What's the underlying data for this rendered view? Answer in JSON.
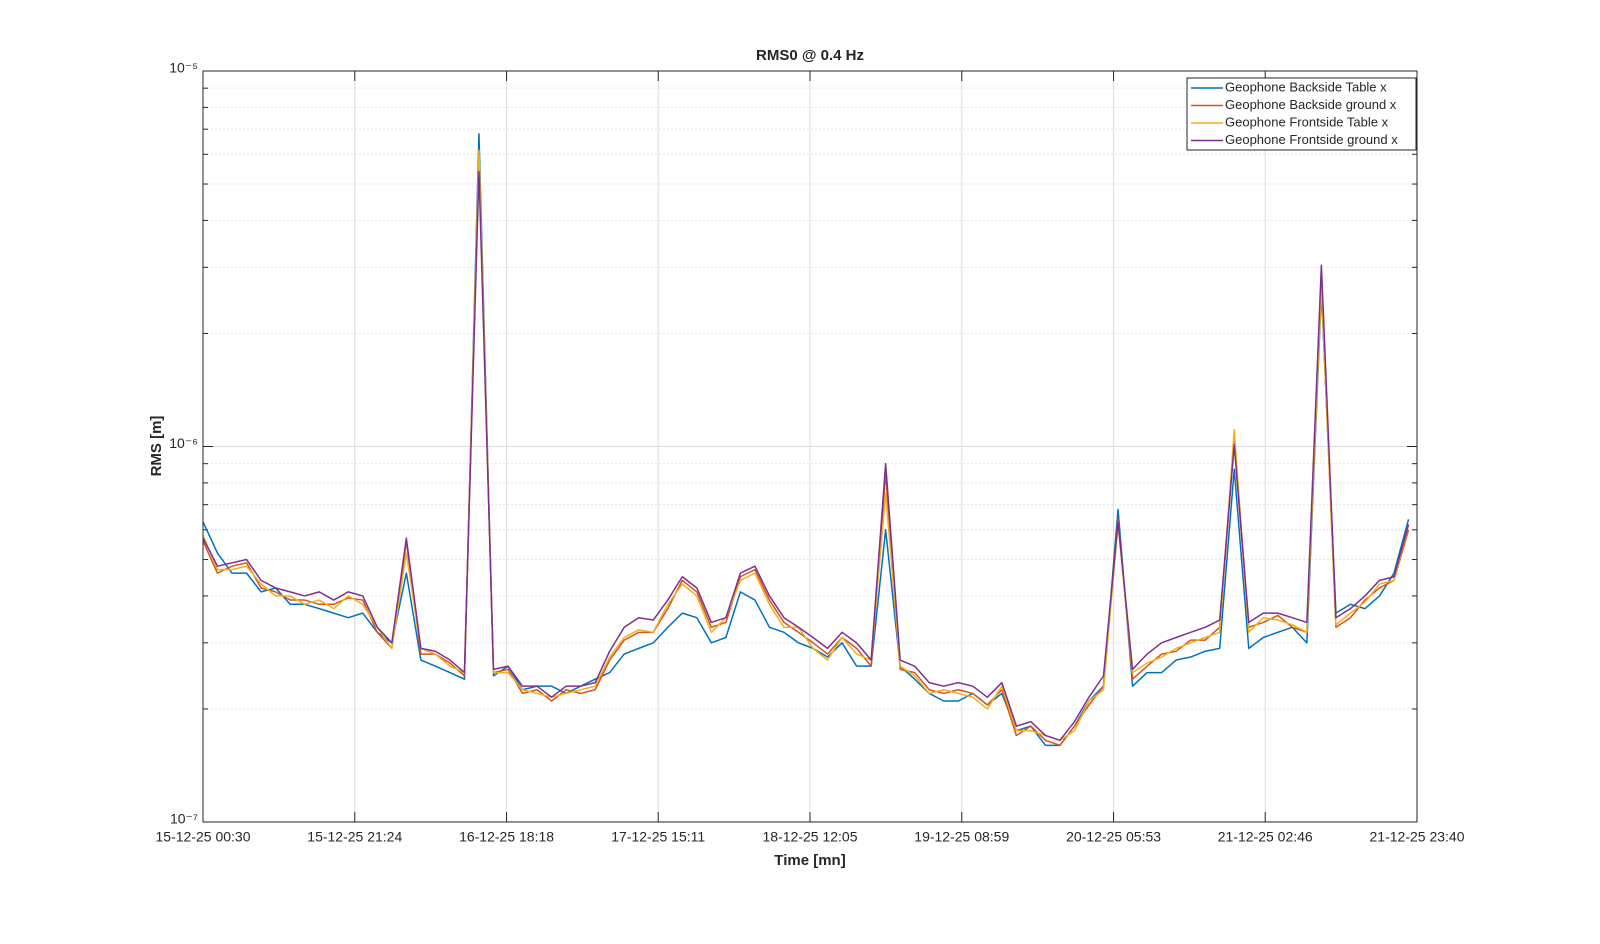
{
  "chart_data": {
    "type": "line",
    "title": "RMS0 @ 0.4 Hz",
    "xlabel": "Time [mn]",
    "ylabel": "RMS [m]",
    "yscale": "log",
    "grid": true,
    "minor_grid": true,
    "legend": "northeast",
    "xlim": [
      "15-12-25 00:30",
      "21-12-25 23:40"
    ],
    "xticks": [
      "15-12-25 00:30",
      "15-12-25 21:24",
      "16-12-25 18:18",
      "17-12-25 15:11",
      "18-12-25 12:05",
      "19-12-25 08:59",
      "20-12-25 05:53",
      "21-12-25 02:46",
      "21-12-25 23:40"
    ],
    "ylim": [
      1e-07,
      1e-05
    ],
    "yticks": [
      {
        "value": 1e-07,
        "label": "10⁻⁷"
      },
      {
        "value": 1e-06,
        "label": "10⁻⁶"
      },
      {
        "value": 1e-05,
        "label": "10⁻⁵"
      }
    ],
    "yminor": [
      2e-07,
      3e-07,
      4e-07,
      5e-07,
      6e-07,
      7e-07,
      8e-07,
      9e-07,
      2e-06,
      3e-06,
      4e-06,
      5e-06,
      6e-06,
      7e-06,
      8e-06,
      9e-06
    ],
    "x": [
      "15-12-25 00:30",
      "15-12-25 02:30",
      "15-12-25 04:30",
      "15-12-25 06:30",
      "15-12-25 08:30",
      "15-12-25 10:30",
      "15-12-25 12:30",
      "15-12-25 14:30",
      "15-12-25 16:30",
      "15-12-25 18:30",
      "15-12-25 20:30",
      "15-12-25 22:30",
      "16-12-25 00:30",
      "16-12-25 02:30",
      "16-12-25 04:30",
      "16-12-25 06:30",
      "16-12-25 08:30",
      "16-12-25 10:30",
      "16-12-25 12:30",
      "16-12-25 14:30",
      "16-12-25 16:30",
      "16-12-25 18:30",
      "16-12-25 20:30",
      "16-12-25 22:30",
      "17-12-25 00:30",
      "17-12-25 02:30",
      "17-12-25 04:30",
      "17-12-25 06:30",
      "17-12-25 08:30",
      "17-12-25 10:30",
      "17-12-25 12:30",
      "17-12-25 14:30",
      "17-12-25 16:30",
      "17-12-25 18:30",
      "17-12-25 20:30",
      "17-12-25 22:30",
      "18-12-25 00:30",
      "18-12-25 02:30",
      "18-12-25 04:30",
      "18-12-25 06:30",
      "18-12-25 08:30",
      "18-12-25 10:30",
      "18-12-25 12:30",
      "18-12-25 14:30",
      "18-12-25 16:30",
      "18-12-25 18:30",
      "18-12-25 20:30",
      "18-12-25 22:30",
      "19-12-25 00:30",
      "19-12-25 02:30",
      "19-12-25 04:30",
      "19-12-25 06:30",
      "19-12-25 08:30",
      "19-12-25 10:30",
      "19-12-25 12:30",
      "19-12-25 14:30",
      "19-12-25 16:30",
      "19-12-25 18:30",
      "19-12-25 20:30",
      "19-12-25 22:30",
      "20-12-25 00:30",
      "20-12-25 02:30",
      "20-12-25 04:30",
      "20-12-25 06:30",
      "20-12-25 08:30",
      "20-12-25 10:30",
      "20-12-25 12:30",
      "20-12-25 14:30",
      "20-12-25 16:30",
      "20-12-25 18:30",
      "20-12-25 20:30",
      "20-12-25 22:30",
      "21-12-25 00:30",
      "21-12-25 02:30",
      "21-12-25 04:30",
      "21-12-25 06:30",
      "21-12-25 08:30",
      "21-12-25 10:30",
      "21-12-25 12:30",
      "21-12-25 14:30",
      "21-12-25 16:30",
      "21-12-25 18:30",
      "21-12-25 20:30",
      "21-12-25 22:30"
    ],
    "series": [
      {
        "name": "Geophone Backside Table x",
        "color": "#0072BD",
        "values": [
          6.3e-07,
          5.2e-07,
          4.6e-07,
          4.6e-07,
          4.1e-07,
          4.2e-07,
          3.8e-07,
          3.8e-07,
          3.7e-07,
          3.6e-07,
          3.5e-07,
          3.6e-07,
          3.2e-07,
          3e-07,
          4.6e-07,
          2.7e-07,
          2.6e-07,
          2.5e-07,
          2.4e-07,
          6.8e-06,
          2.45e-07,
          2.6e-07,
          2.25e-07,
          2.3e-07,
          2.3e-07,
          2.2e-07,
          2.3e-07,
          2.4e-07,
          2.5e-07,
          2.8e-07,
          2.9e-07,
          3e-07,
          3.3e-07,
          3.6e-07,
          3.5e-07,
          3e-07,
          3.1e-07,
          4.1e-07,
          3.9e-07,
          3.3e-07,
          3.2e-07,
          3e-07,
          2.9e-07,
          2.75e-07,
          3e-07,
          2.6e-07,
          2.6e-07,
          6e-07,
          2.6e-07,
          2.4e-07,
          2.2e-07,
          2.1e-07,
          2.1e-07,
          2.2e-07,
          2.05e-07,
          2.2e-07,
          1.75e-07,
          1.8e-07,
          1.6e-07,
          1.6e-07,
          1.8e-07,
          2.1e-07,
          2.3e-07,
          6.8e-07,
          2.3e-07,
          2.5e-07,
          2.5e-07,
          2.7e-07,
          2.75e-07,
          2.85e-07,
          2.9e-07,
          8.7e-07,
          2.9e-07,
          3.1e-07,
          3.2e-07,
          3.3e-07,
          3e-07,
          2.6e-06,
          3.6e-07,
          3.8e-07,
          3.7e-07,
          4e-07,
          4.6e-07,
          6.4e-07
        ]
      },
      {
        "name": "Geophone Backside ground x",
        "color": "#D95319",
        "values": [
          5.6e-07,
          4.6e-07,
          4.8e-07,
          4.9e-07,
          4.2e-07,
          4.1e-07,
          3.9e-07,
          3.9e-07,
          3.8e-07,
          3.8e-07,
          3.95e-07,
          3.9e-07,
          3.2e-07,
          2.9e-07,
          5.6e-07,
          2.8e-07,
          2.8e-07,
          2.65e-07,
          2.45e-07,
          6e-06,
          2.5e-07,
          2.55e-07,
          2.2e-07,
          2.25e-07,
          2.1e-07,
          2.25e-07,
          2.2e-07,
          2.25e-07,
          2.7e-07,
          3.05e-07,
          3.2e-07,
          3.2e-07,
          3.7e-07,
          4.4e-07,
          4.1e-07,
          3.3e-07,
          3.4e-07,
          4.5e-07,
          4.7e-07,
          3.9e-07,
          3.4e-07,
          3.2e-07,
          3e-07,
          2.8e-07,
          3.1e-07,
          2.9e-07,
          2.6e-07,
          8.5e-07,
          2.55e-07,
          2.5e-07,
          2.25e-07,
          2.2e-07,
          2.25e-07,
          2.2e-07,
          2.05e-07,
          2.25e-07,
          1.7e-07,
          1.8e-07,
          1.65e-07,
          1.6e-07,
          1.8e-07,
          2.05e-07,
          2.3e-07,
          6.4e-07,
          2.4e-07,
          2.6e-07,
          2.8e-07,
          2.85e-07,
          3.05e-07,
          3.05e-07,
          3.3e-07,
          1.03e-06,
          3.3e-07,
          3.4e-07,
          3.55e-07,
          3.3e-07,
          3.2e-07,
          2.7e-06,
          3.3e-07,
          3.5e-07,
          3.9e-07,
          4.2e-07,
          4.4e-07,
          6e-07
        ]
      },
      {
        "name": "Geophone Frontside Table x",
        "color": "#EDB120",
        "values": [
          5.8e-07,
          4.7e-07,
          4.7e-07,
          4.8e-07,
          4.3e-07,
          4e-07,
          4e-07,
          3.8e-07,
          3.9e-07,
          3.7e-07,
          4e-07,
          3.8e-07,
          3.3e-07,
          2.9e-07,
          5.2e-07,
          2.9e-07,
          2.8e-07,
          2.6e-07,
          2.5e-07,
          6.15e-06,
          2.5e-07,
          2.5e-07,
          2.25e-07,
          2.2e-07,
          2.15e-07,
          2.2e-07,
          2.25e-07,
          2.3e-07,
          2.75e-07,
          3.1e-07,
          3.25e-07,
          3.2e-07,
          3.8e-07,
          4.3e-07,
          4e-07,
          3.2e-07,
          3.5e-07,
          4.4e-07,
          4.6e-07,
          3.8e-07,
          3.3e-07,
          3.3e-07,
          2.9e-07,
          2.7e-07,
          3.1e-07,
          2.8e-07,
          2.7e-07,
          7.5e-07,
          2.6e-07,
          2.45e-07,
          2.2e-07,
          2.25e-07,
          2.2e-07,
          2.15e-07,
          2e-07,
          2.3e-07,
          1.75e-07,
          1.75e-07,
          1.7e-07,
          1.65e-07,
          1.75e-07,
          2.1e-07,
          2.25e-07,
          6.2e-07,
          2.5e-07,
          2.65e-07,
          2.75e-07,
          2.9e-07,
          3e-07,
          3.1e-07,
          3.2e-07,
          1.11e-06,
          3.2e-07,
          3.5e-07,
          3.45e-07,
          3.35e-07,
          3.2e-07,
          2.7e-06,
          3.35e-07,
          3.6e-07,
          3.85e-07,
          4.3e-07,
          4.4e-07,
          6.2e-07
        ]
      },
      {
        "name": "Geophone Frontside ground x",
        "color": "#7E2F8E",
        "values": [
          5.7e-07,
          4.8e-07,
          4.9e-07,
          5e-07,
          4.4e-07,
          4.2e-07,
          4.1e-07,
          4e-07,
          4.1e-07,
          3.9e-07,
          4.1e-07,
          4e-07,
          3.3e-07,
          3e-07,
          5.7e-07,
          2.9e-07,
          2.85e-07,
          2.7e-07,
          2.5e-07,
          5.4e-06,
          2.55e-07,
          2.6e-07,
          2.3e-07,
          2.3e-07,
          2.15e-07,
          2.3e-07,
          2.3e-07,
          2.35e-07,
          2.85e-07,
          3.3e-07,
          3.5e-07,
          3.45e-07,
          3.9e-07,
          4.5e-07,
          4.2e-07,
          3.4e-07,
          3.5e-07,
          4.6e-07,
          4.8e-07,
          4e-07,
          3.5e-07,
          3.3e-07,
          3.1e-07,
          2.9e-07,
          3.2e-07,
          3e-07,
          2.7e-07,
          9e-07,
          2.7e-07,
          2.6e-07,
          2.35e-07,
          2.3e-07,
          2.35e-07,
          2.3e-07,
          2.15e-07,
          2.35e-07,
          1.8e-07,
          1.85e-07,
          1.7e-07,
          1.65e-07,
          1.85e-07,
          2.15e-07,
          2.45e-07,
          6.3e-07,
          2.55e-07,
          2.8e-07,
          3e-07,
          3.1e-07,
          3.2e-07,
          3.3e-07,
          3.45e-07,
          1.01e-06,
          3.4e-07,
          3.6e-07,
          3.6e-07,
          3.5e-07,
          3.4e-07,
          3.04e-06,
          3.5e-07,
          3.7e-07,
          4e-07,
          4.4e-07,
          4.5e-07,
          6.2e-07
        ]
      }
    ]
  }
}
